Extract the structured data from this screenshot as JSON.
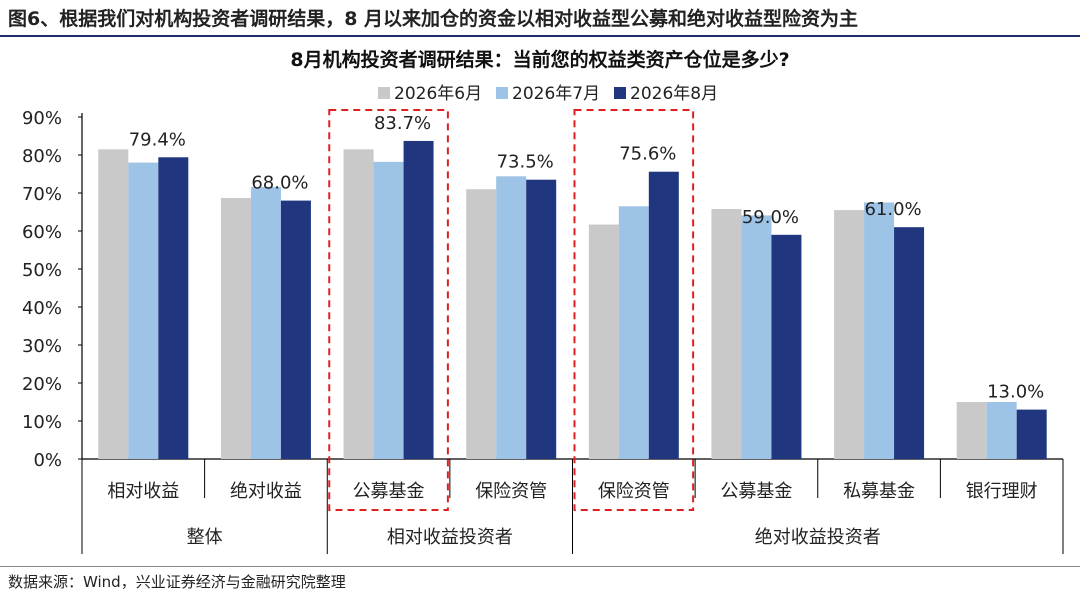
{
  "figure_title": "图6、根据我们对机构投资者调研结果，8 月以来加仓的资金以相对收益型公募和绝对收益型险资为主",
  "source": "数据来源：Wind，兴业证券经济与金融研究院整理",
  "colors": {
    "jun": "#c9c9c9",
    "jul": "#9dc3e6",
    "aug": "#203780",
    "highlight_box": "#e02020",
    "title_rule": "#1f2d6b"
  },
  "chart_data": {
    "type": "bar",
    "title": "8月机构投资者调研结果：当前您的权益类资产仓位是多少?",
    "categories": [
      "相对收益",
      "绝对收益",
      "公募基金",
      "保险资管",
      "保险资管",
      "公募基金",
      "私募基金",
      "银行理财"
    ],
    "groups": [
      {
        "label": "整体",
        "categories": [
          "相对收益",
          "绝对收益"
        ]
      },
      {
        "label": "相对收益投资者",
        "categories": [
          "公募基金",
          "保险资管"
        ]
      },
      {
        "label": "绝对收益投资者",
        "categories": [
          "保险资管",
          "公募基金",
          "私募基金",
          "银行理财"
        ]
      }
    ],
    "series": [
      {
        "name": "2026年6月",
        "values": [
          81.5,
          68.7,
          81.5,
          71.0,
          61.7,
          65.8,
          65.5,
          15.0
        ]
      },
      {
        "name": "2026年7月",
        "values": [
          78.0,
          71.6,
          78.2,
          74.4,
          66.5,
          64.1,
          67.5,
          15.0
        ]
      },
      {
        "name": "2026年8月",
        "values": [
          79.4,
          68.0,
          83.7,
          73.5,
          75.6,
          59.0,
          61.0,
          13.0
        ]
      }
    ],
    "data_labels": [
      "79.4%",
      "68.0%",
      "83.7%",
      "73.5%",
      "75.6%",
      "59.0%",
      "61.0%",
      "13.0%"
    ],
    "yticks": [
      "0%",
      "10%",
      "20%",
      "30%",
      "40%",
      "50%",
      "60%",
      "70%",
      "80%",
      "90%"
    ],
    "ylim": [
      0,
      90
    ],
    "highlighted_categories": [
      2,
      4
    ],
    "legend_position": "top",
    "grid": false
  }
}
